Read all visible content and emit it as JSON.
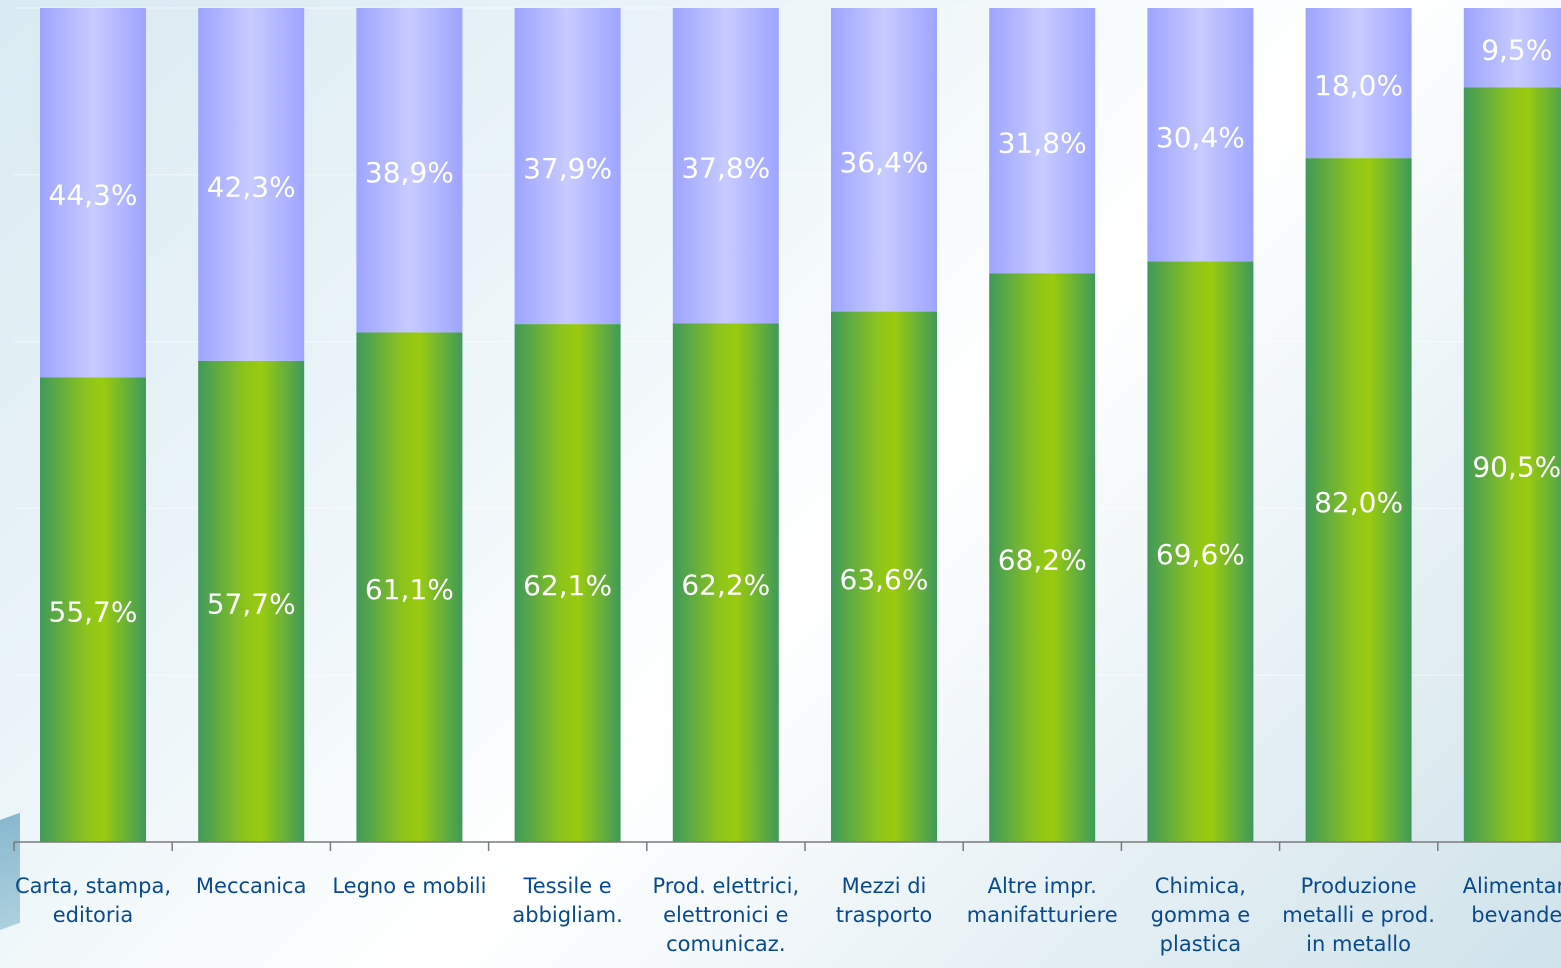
{
  "colors": {
    "lower_series": "#8fc51a",
    "lower_series_edge": "#3f9a5a",
    "upper_series": "#b4b8ff",
    "upper_series_edge": "#9ea4ff",
    "label_text": "#ffffff",
    "category_text": "#0a4a8c",
    "axis": "#7a7a7a"
  },
  "chart_data": {
    "type": "bar",
    "stacked": true,
    "percent_stacked": true,
    "title": "",
    "xlabel": "",
    "ylabel": "",
    "ylim": [
      0,
      100
    ],
    "grid": true,
    "categories": [
      [
        "Carta, stampa,",
        "editoria"
      ],
      [
        "Meccanica"
      ],
      [
        "Legno e mobili"
      ],
      [
        "Tessile e",
        "abbigliam."
      ],
      [
        "Prod. elettrici,",
        "elettronici e",
        "comunicaz."
      ],
      [
        "Mezzi di",
        "trasporto"
      ],
      [
        "Altre impr.",
        "manifatturiere"
      ],
      [
        "Chimica,",
        "gomma e",
        "plastica"
      ],
      [
        "Produzione",
        "metalli e prod.",
        "in metallo"
      ],
      [
        "Alimentari",
        "bevande"
      ]
    ],
    "series": [
      {
        "values": [
          55.7,
          57.7,
          61.1,
          62.1,
          62.2,
          63.6,
          68.2,
          69.6,
          82.0,
          90.5
        ],
        "labels": [
          "55,7%",
          "57,7%",
          "61,1%",
          "62,1%",
          "62,2%",
          "63,6%",
          "68,2%",
          "69,6%",
          "82,0%",
          "90,5%"
        ]
      },
      {
        "values": [
          44.3,
          42.3,
          38.9,
          37.9,
          37.8,
          36.4,
          31.8,
          30.4,
          18.0,
          9.5
        ],
        "labels": [
          "44,3%",
          "42,3%",
          "38,9%",
          "37,9%",
          "37,8%",
          "36,4%",
          "31,8%",
          "30,4%",
          "18,0%",
          "9,5%"
        ]
      }
    ]
  }
}
